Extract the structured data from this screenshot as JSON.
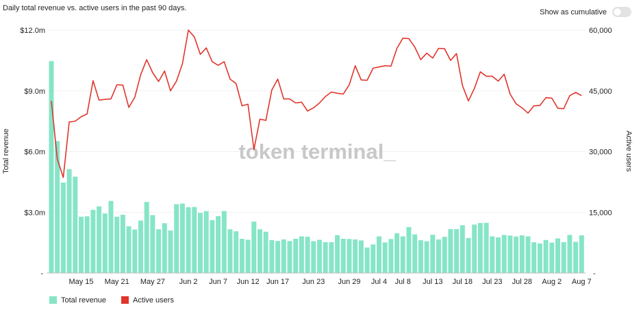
{
  "header": {
    "title": "Daily total revenue vs. active users in the past 90 days.",
    "toggle_label": "Show as cumulative",
    "toggle_on": false
  },
  "watermark": "token terminal_",
  "colors": {
    "revenue": "#86e5c7",
    "users": "#e0352b"
  },
  "chart_data": {
    "type": "bar+line",
    "title": "Daily total revenue vs. active users in the past 90 days.",
    "start_date": "May 10",
    "x_ticks": [
      {
        "i": 5,
        "label": "May 15"
      },
      {
        "i": 11,
        "label": "May 21"
      },
      {
        "i": 17,
        "label": "May 27"
      },
      {
        "i": 23,
        "label": "Jun 2"
      },
      {
        "i": 28,
        "label": "Jun 7"
      },
      {
        "i": 33,
        "label": "Jun 12"
      },
      {
        "i": 38,
        "label": "Jun 17"
      },
      {
        "i": 44,
        "label": "Jun 23"
      },
      {
        "i": 50,
        "label": "Jun 29"
      },
      {
        "i": 55,
        "label": "Jul 4"
      },
      {
        "i": 59,
        "label": "Jul 8"
      },
      {
        "i": 64,
        "label": "Jul 13"
      },
      {
        "i": 69,
        "label": "Jul 18"
      },
      {
        "i": 74,
        "label": "Jul 23"
      },
      {
        "i": 79,
        "label": "Jul 28"
      },
      {
        "i": 84,
        "label": "Aug 2"
      },
      {
        "i": 89,
        "label": "Aug 7"
      }
    ],
    "ylabel_left": "Total revenue",
    "ylim_left": [
      0,
      12
    ],
    "yticks_left": [
      "$3.0m",
      "$6.0m",
      "$9.0m",
      "$12.0m"
    ],
    "ylabel_right": "Active users",
    "ylim_right": [
      0,
      60000
    ],
    "yticks_right": [
      "15,000",
      "30,000",
      "45,000",
      "60,000"
    ],
    "grid": true,
    "legend": {
      "position": "bottom-left",
      "entries": [
        "Total revenue",
        "Active users"
      ]
    },
    "series": [
      {
        "name": "Total revenue",
        "type": "bar",
        "unit": "USD millions",
        "values": [
          10.47,
          6.52,
          4.47,
          5.13,
          4.76,
          2.78,
          2.8,
          3.12,
          3.29,
          2.94,
          3.56,
          2.78,
          2.88,
          2.31,
          2.15,
          2.59,
          3.51,
          2.86,
          2.16,
          2.46,
          2.1,
          3.4,
          3.43,
          3.25,
          3.26,
          2.97,
          3.06,
          2.61,
          2.81,
          3.06,
          2.16,
          2.06,
          1.69,
          1.64,
          2.54,
          2.16,
          2.04,
          1.63,
          1.58,
          1.66,
          1.58,
          1.69,
          1.81,
          1.79,
          1.57,
          1.64,
          1.52,
          1.52,
          1.87,
          1.69,
          1.68,
          1.66,
          1.61,
          1.26,
          1.41,
          1.81,
          1.51,
          1.68,
          1.96,
          1.81,
          2.27,
          1.91,
          1.62,
          1.57,
          1.89,
          1.66,
          1.79,
          2.17,
          2.17,
          2.36,
          1.73,
          2.39,
          2.47,
          2.48,
          1.81,
          1.76,
          1.88,
          1.85,
          1.8,
          1.86,
          1.81,
          1.52,
          1.46,
          1.63,
          1.5,
          1.71,
          1.52,
          1.88,
          1.54,
          1.86
        ]
      },
      {
        "name": "Active users",
        "type": "line",
        "unit": "users",
        "values": [
          42500,
          28100,
          23600,
          37300,
          37500,
          38600,
          39300,
          47500,
          42700,
          42900,
          43000,
          46500,
          46400,
          40900,
          43400,
          49000,
          52700,
          49500,
          47300,
          49900,
          45000,
          47400,
          51700,
          60000,
          58300,
          54000,
          55600,
          52200,
          51300,
          52200,
          47900,
          46800,
          41300,
          41700,
          30500,
          38000,
          37700,
          45200,
          47900,
          43000,
          43000,
          42000,
          42200,
          40000,
          40800,
          42000,
          43600,
          44700,
          44400,
          44200,
          46500,
          51200,
          47700,
          47600,
          50600,
          50900,
          51200,
          51100,
          55500,
          58000,
          57900,
          55800,
          52700,
          54300,
          53100,
          55500,
          55400,
          52500,
          54200,
          46300,
          42500,
          45600,
          49700,
          48600,
          48600,
          47400,
          49100,
          44200,
          41800,
          40800,
          39500,
          41300,
          41400,
          43300,
          43200,
          40700,
          40600,
          43800,
          44600,
          43800
        ]
      }
    ]
  }
}
